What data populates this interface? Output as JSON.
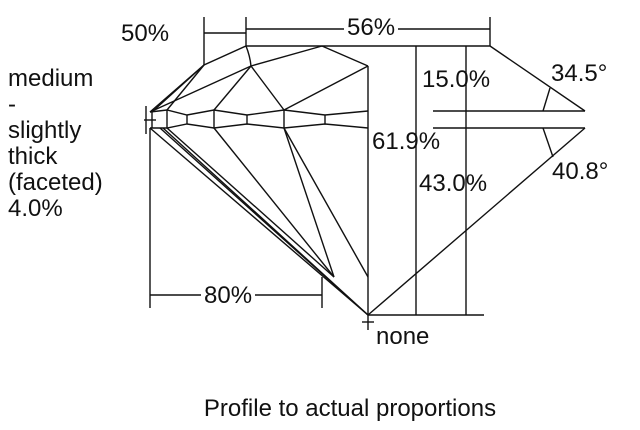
{
  "labels": {
    "crown_facet_ratio": "50%",
    "table": "56%",
    "girdle": [
      "medium",
      "-",
      "slightly",
      "thick",
      "(faceted)",
      "4.0%"
    ],
    "crown_height": "15.0%",
    "crown_angle": "34.5°",
    "total_depth": "61.9%",
    "pavilion_depth": "43.0%",
    "pavilion_angle": "40.8°",
    "lower_half": "80%",
    "culet": "none"
  },
  "caption": "Profile to actual proportions"
}
